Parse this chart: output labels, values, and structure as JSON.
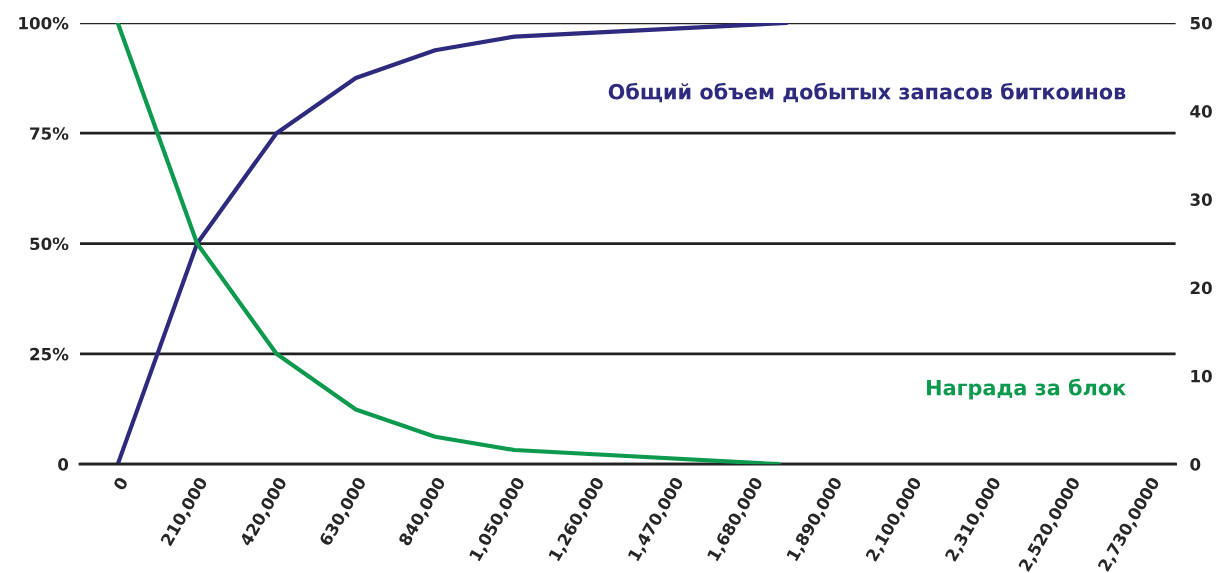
{
  "chart_data": {
    "type": "line",
    "xlim": [
      -100000,
      2800000
    ],
    "xticks": [
      0,
      {
        "value": 210000,
        "label": "210,000"
      },
      {
        "value": 420000,
        "label": "420,000"
      },
      {
        "value": 630000,
        "label": "630,000"
      },
      {
        "value": 840000,
        "label": "840,000"
      },
      {
        "value": 1050000,
        "label": "1,050,000"
      },
      {
        "value": 1260000,
        "label": "1,260,000"
      },
      {
        "value": 1470000,
        "label": "1,470,000"
      },
      {
        "value": 1680000,
        "label": "1,680,000"
      },
      {
        "value": 1890000,
        "label": "1,890,000"
      },
      {
        "value": 2100000,
        "label": "2,100,000"
      },
      {
        "value": 2310000,
        "label": "2,310,000"
      },
      {
        "value": 2520000,
        "label": "2,520,0000"
      },
      {
        "value": 2730000,
        "label": "2,730,0000"
      }
    ],
    "ylim": [
      0,
      100
    ],
    "yticks": [
      0,
      {
        "value": 25,
        "label": "25%"
      },
      {
        "value": 50,
        "label": "50%"
      },
      {
        "value": 75,
        "label": "75%"
      },
      {
        "value": 100,
        "label": "100%"
      }
    ],
    "y2lim": [
      0,
      50
    ],
    "y2ticks": [
      0,
      10,
      20,
      30,
      40,
      50
    ],
    "grid": "y",
    "series": [
      {
        "name": "Общий объем добытых запасов биткоинов",
        "color": "#2e2a7e",
        "x": [
          0,
          210000,
          420000,
          630000,
          840000,
          1050000,
          1770000
        ],
        "values": [
          0,
          50,
          75,
          87.5,
          93.8,
          96.9,
          100
        ]
      },
      {
        "name": "Награда за блок",
        "color": "#0d9a4f",
        "axis": "y2",
        "x": [
          0,
          210000,
          420000,
          630000,
          840000,
          1050000,
          1750000
        ],
        "values": [
          50,
          25,
          12.5,
          6.2,
          3.1,
          1.6,
          0
        ]
      }
    ]
  }
}
